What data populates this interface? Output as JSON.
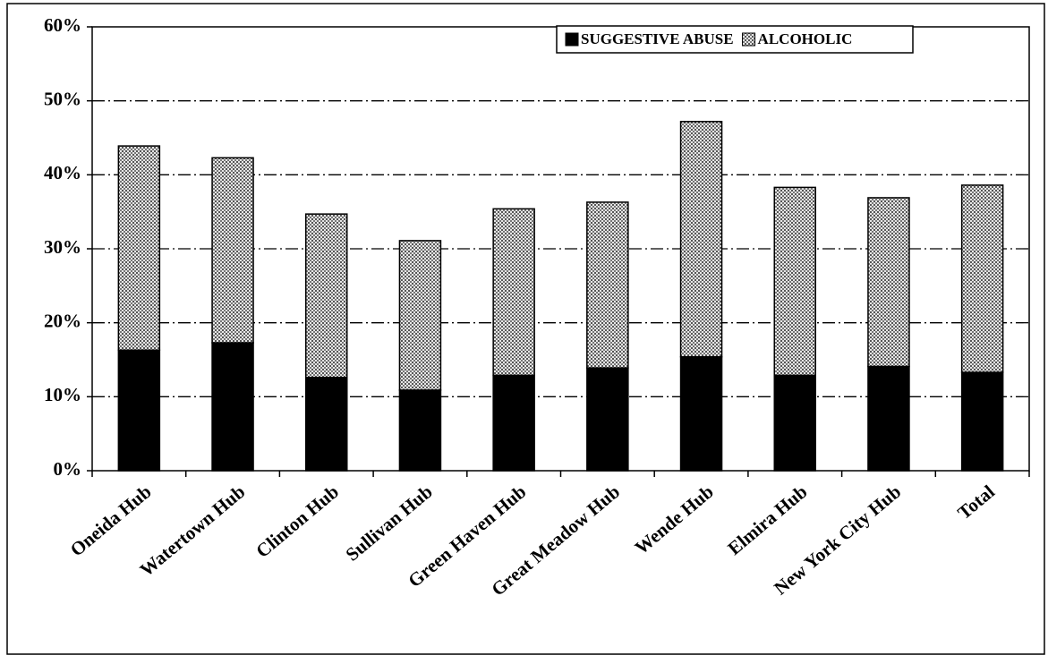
{
  "chart_data": {
    "type": "stacked_bar",
    "categories": [
      "Oneida Hub",
      "Watertown Hub",
      "Clinton Hub",
      "Sullivan Hub",
      "Green Haven Hub",
      "Great Meadow Hub",
      "Wende Hub",
      "Elmira Hub",
      "New York City Hub",
      "Total"
    ],
    "series": [
      {
        "name": "SUGGESTIVE ABUSE",
        "color": "#000000",
        "values": [
          16.3,
          17.3,
          12.6,
          10.9,
          12.9,
          13.9,
          15.4,
          12.9,
          14.1,
          13.3
        ]
      },
      {
        "name": "ALCOHOLIC",
        "color": "#c8c8c8",
        "values": [
          27.6,
          25.0,
          22.1,
          20.2,
          22.5,
          22.4,
          31.8,
          25.4,
          22.8,
          25.3
        ]
      }
    ],
    "ylim": [
      0,
      60
    ],
    "yticks": [
      {
        "value": 0,
        "label": "0%"
      },
      {
        "value": 10,
        "label": "10%"
      },
      {
        "value": 20,
        "label": "20%"
      },
      {
        "value": 30,
        "label": "30%"
      },
      {
        "value": 40,
        "label": "40%"
      },
      {
        "value": 50,
        "label": "50%"
      },
      {
        "value": 60,
        "label": "60%"
      }
    ],
    "grid": true,
    "legend": "top-right"
  }
}
